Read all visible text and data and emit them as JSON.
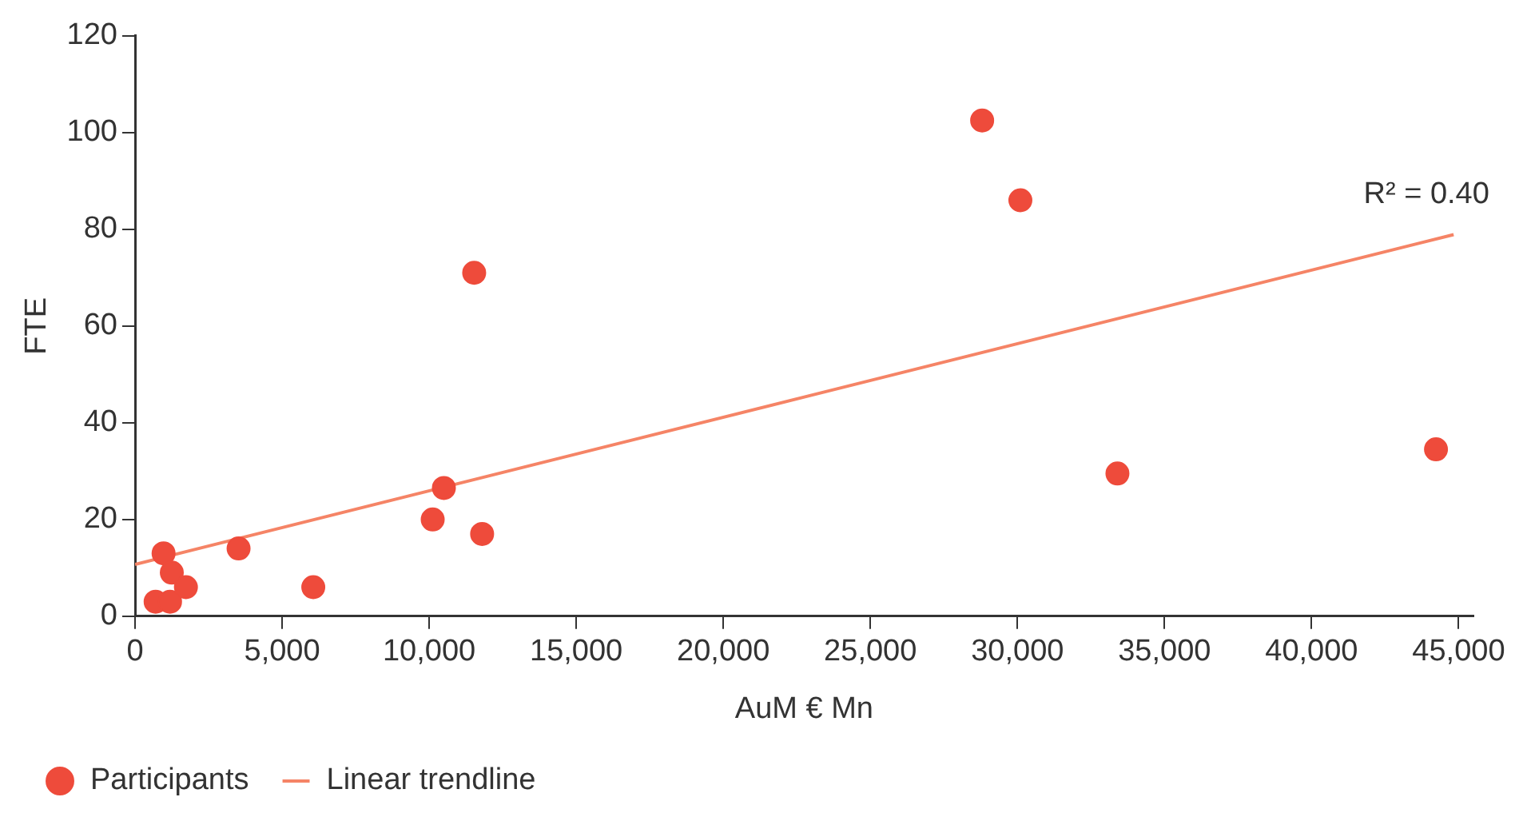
{
  "chart_data": {
    "type": "scatter",
    "xlabel": "AuM € Mn",
    "ylabel": "FTE",
    "xlim": [
      0,
      45500
    ],
    "ylim": [
      0,
      120
    ],
    "xticks": [
      {
        "value": 0,
        "label": "0"
      },
      {
        "value": 5000,
        "label": "5,000"
      },
      {
        "value": 10000,
        "label": "10,000"
      },
      {
        "value": 15000,
        "label": "15,000"
      },
      {
        "value": 20000,
        "label": "20,000"
      },
      {
        "value": 25000,
        "label": "25,000"
      },
      {
        "value": 30000,
        "label": "30,000"
      },
      {
        "value": 35000,
        "label": "35,000"
      },
      {
        "value": 40000,
        "label": "40,000"
      },
      {
        "value": 45000,
        "label": "45,000"
      }
    ],
    "yticks": [
      0,
      20,
      40,
      60,
      80,
      100,
      120
    ],
    "grid": false,
    "legend": "bottom",
    "annotations": [
      "R² = 0.40"
    ],
    "series": [
      {
        "name": "Participants",
        "marker": "circle",
        "color": "#ee4b3b",
        "x": [
          700,
          970,
          1250,
          1190,
          1730,
          3520,
          6060,
          10120,
          10500,
          11530,
          11800,
          28800,
          30100,
          33400,
          44230
        ],
        "values": [
          3,
          13,
          9,
          3,
          6,
          14,
          6,
          20,
          26.5,
          71,
          17,
          102.5,
          86,
          29.5,
          34.5
        ]
      },
      {
        "name": "Linear trendline",
        "type": "line",
        "marker": "none",
        "color": "#f58466",
        "x": [
          0,
          44830
        ],
        "values": [
          10.7,
          78.9
        ]
      }
    ]
  }
}
